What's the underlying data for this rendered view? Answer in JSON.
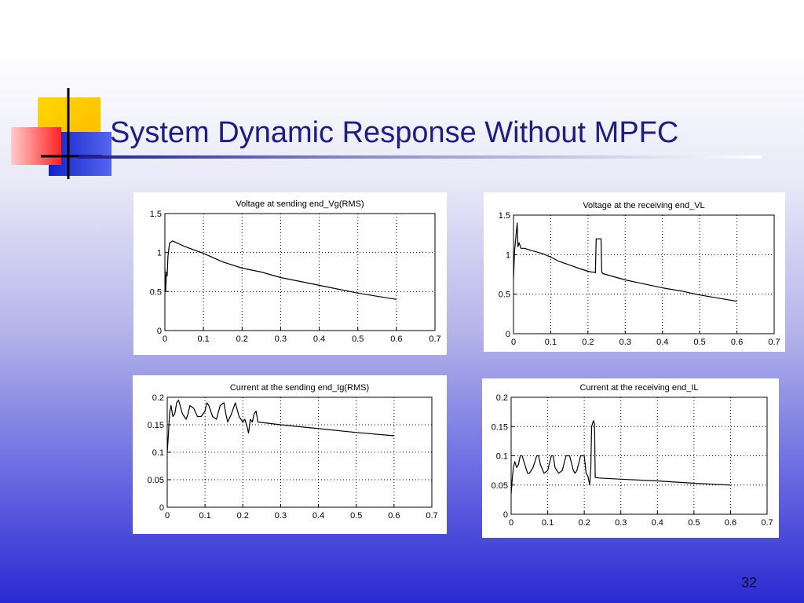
{
  "slide": {
    "title": "System Dynamic Response Without MPFC",
    "page_number": "32"
  },
  "colors": {
    "title_text": "#1c1c8c",
    "logo_yellow": "#ffcc00",
    "logo_blue": "#2233cc",
    "logo_red": "#ff3333",
    "logo_line": "#000000"
  },
  "chart_data": [
    {
      "type": "line",
      "title": "Voltage at sending end_Vg(RMS)",
      "xlabel": "",
      "ylabel": "",
      "xlim": [
        0,
        0.7
      ],
      "ylim": [
        0,
        1.5
      ],
      "xticks": [
        0,
        0.1,
        0.2,
        0.3,
        0.4,
        0.5,
        0.6,
        0.7
      ],
      "xtick_labels": [
        "0",
        "0.1",
        "0.2",
        "0.3",
        "0.4",
        "0.5",
        "0.6",
        "0.7"
      ],
      "yticks": [
        0,
        0.5,
        1,
        1.5
      ],
      "ytick_labels": [
        "0",
        "0.5",
        "1",
        "1.5"
      ],
      "grid": true,
      "series": [
        {
          "x": [
            0,
            0.002,
            0.004,
            0.006,
            0.008,
            0.012,
            0.02,
            0.05,
            0.1,
            0.15,
            0.2,
            0.25,
            0.3,
            0.35,
            0.4,
            0.45,
            0.5,
            0.55,
            0.6
          ],
          "y": [
            0.8,
            0.5,
            0.75,
            0.7,
            0.95,
            1.12,
            1.15,
            1.08,
            0.99,
            0.88,
            0.8,
            0.75,
            0.68,
            0.63,
            0.58,
            0.53,
            0.48,
            0.44,
            0.4
          ]
        }
      ]
    },
    {
      "type": "line",
      "title": "Voltage at the receiving end_VL",
      "xlabel": "",
      "ylabel": "",
      "xlim": [
        0,
        0.7
      ],
      "ylim": [
        0,
        1.5
      ],
      "xticks": [
        0,
        0.1,
        0.2,
        0.3,
        0.4,
        0.5,
        0.6,
        0.7
      ],
      "xtick_labels": [
        "0",
        "0.1",
        "0.2",
        "0.3",
        "0.4",
        "0.5",
        "0.6",
        "0.7"
      ],
      "yticks": [
        0,
        0.5,
        1,
        1.5
      ],
      "ytick_labels": [
        "0",
        "0.5",
        "1",
        "1.5"
      ],
      "grid": true,
      "series": [
        {
          "x": [
            0,
            0.003,
            0.006,
            0.01,
            0.012,
            0.015,
            0.02,
            0.03,
            0.05,
            0.08,
            0.1,
            0.12,
            0.15,
            0.18,
            0.2,
            0.21,
            0.215,
            0.22,
            0.222,
            0.235,
            0.237,
            0.24,
            0.3,
            0.35,
            0.4,
            0.45,
            0.5,
            0.55,
            0.6
          ],
          "y": [
            0.7,
            1.05,
            1.2,
            1.4,
            1.1,
            1.15,
            1.08,
            1.08,
            1.05,
            1.01,
            0.97,
            0.92,
            0.87,
            0.82,
            0.79,
            0.78,
            0.78,
            0.77,
            1.2,
            1.2,
            0.78,
            0.76,
            0.68,
            0.63,
            0.58,
            0.54,
            0.49,
            0.45,
            0.41
          ]
        }
      ]
    },
    {
      "type": "line",
      "title": "Current at the sending end_Ig(RMS)",
      "xlabel": "",
      "ylabel": "",
      "xlim": [
        0,
        0.7
      ],
      "ylim": [
        0,
        0.2
      ],
      "xticks": [
        0,
        0.1,
        0.2,
        0.3,
        0.4,
        0.5,
        0.6,
        0.7
      ],
      "xtick_labels": [
        "0",
        "0.1",
        "0.2",
        "0.3",
        "0.4",
        "0.5",
        "0.6",
        "0.7"
      ],
      "yticks": [
        0,
        0.05,
        0.1,
        0.15,
        0.2
      ],
      "ytick_labels": [
        "0",
        "0.05",
        "0.1",
        "0.15",
        "0.2"
      ],
      "grid": true,
      "series": [
        {
          "x": [
            0,
            0.003,
            0.006,
            0.01,
            0.015,
            0.02,
            0.025,
            0.03,
            0.04,
            0.05,
            0.055,
            0.06,
            0.07,
            0.08,
            0.09,
            0.1,
            0.105,
            0.11,
            0.12,
            0.13,
            0.14,
            0.15,
            0.155,
            0.16,
            0.17,
            0.18,
            0.19,
            0.2,
            0.205,
            0.21,
            0.215,
            0.22,
            0.225,
            0.23,
            0.235,
            0.24,
            0.3,
            0.4,
            0.5,
            0.6
          ],
          "y": [
            0.1,
            0.13,
            0.17,
            0.185,
            0.165,
            0.17,
            0.19,
            0.195,
            0.17,
            0.16,
            0.17,
            0.185,
            0.18,
            0.165,
            0.165,
            0.175,
            0.19,
            0.185,
            0.165,
            0.16,
            0.185,
            0.19,
            0.17,
            0.155,
            0.17,
            0.19,
            0.165,
            0.155,
            0.16,
            0.15,
            0.135,
            0.16,
            0.155,
            0.17,
            0.175,
            0.155,
            0.15,
            0.143,
            0.136,
            0.13
          ]
        }
      ]
    },
    {
      "type": "line",
      "title": "Current at the receiving end_IL",
      "xlabel": "",
      "ylabel": "",
      "xlim": [
        0,
        0.7
      ],
      "ylim": [
        0,
        0.2
      ],
      "xticks": [
        0,
        0.1,
        0.2,
        0.3,
        0.4,
        0.5,
        0.6,
        0.7
      ],
      "xtick_labels": [
        "0",
        "0.1",
        "0.2",
        "0.3",
        "0.4",
        "0.5",
        "0.6",
        "0.7"
      ],
      "yticks": [
        0,
        0.05,
        0.1,
        0.15,
        0.2
      ],
      "ytick_labels": [
        "0",
        "0.05",
        "0.1",
        "0.15",
        "0.2"
      ],
      "grid": true,
      "series": [
        {
          "x": [
            0,
            0.003,
            0.006,
            0.01,
            0.015,
            0.02,
            0.025,
            0.03,
            0.04,
            0.045,
            0.05,
            0.06,
            0.07,
            0.075,
            0.08,
            0.09,
            0.1,
            0.11,
            0.115,
            0.12,
            0.13,
            0.14,
            0.15,
            0.16,
            0.17,
            0.175,
            0.18,
            0.19,
            0.2,
            0.205,
            0.21,
            0.215,
            0.218,
            0.22,
            0.225,
            0.228,
            0.23,
            0.24,
            0.3,
            0.4,
            0.5,
            0.6
          ],
          "y": [
            0.035,
            0.06,
            0.08,
            0.09,
            0.08,
            0.085,
            0.1,
            0.1,
            0.08,
            0.07,
            0.07,
            0.08,
            0.1,
            0.1,
            0.085,
            0.07,
            0.075,
            0.1,
            0.1,
            0.08,
            0.07,
            0.075,
            0.1,
            0.1,
            0.075,
            0.07,
            0.075,
            0.1,
            0.1,
            0.07,
            0.065,
            0.05,
            0.08,
            0.15,
            0.16,
            0.155,
            0.063,
            0.062,
            0.06,
            0.057,
            0.053,
            0.05
          ]
        }
      ]
    }
  ]
}
